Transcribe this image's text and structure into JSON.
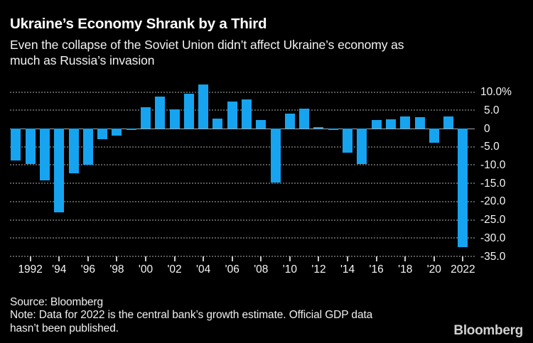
{
  "header": {
    "title": "Ukraine’s Economy Shrank by a Third",
    "subtitle_line1": "Even the collapse of the Soviet Union didn’t affect Ukraine’s economy as",
    "subtitle_line2": "much as Russia’s invasion"
  },
  "chart_data": {
    "type": "bar",
    "title": "Ukraine’s Economy Shrank by a Third",
    "xlabel": "",
    "ylabel": "",
    "unit": "%",
    "ylim": [
      -35,
      12.6
    ],
    "grid": "horizontal-dotted",
    "legend_position": "none",
    "years": [
      1991,
      1992,
      1993,
      1994,
      1995,
      1996,
      1997,
      1998,
      1999,
      2000,
      2001,
      2002,
      2003,
      2004,
      2005,
      2006,
      2007,
      2008,
      2009,
      2010,
      2011,
      2012,
      2013,
      2014,
      2015,
      2016,
      2017,
      2018,
      2019,
      2020,
      2021,
      2022
    ],
    "values": [
      -8.7,
      -9.7,
      -14.2,
      -22.9,
      -12.2,
      -10.0,
      -3.0,
      -1.9,
      -0.2,
      5.9,
      8.8,
      5.3,
      9.5,
      12.1,
      2.7,
      7.3,
      7.9,
      2.3,
      -14.8,
      4.1,
      5.5,
      0.2,
      0.0,
      -6.6,
      -9.8,
      2.4,
      2.5,
      3.4,
      3.2,
      -3.8,
      3.4,
      -32.5
    ],
    "y_ticks": [
      {
        "value": 10,
        "label": "10.0%"
      },
      {
        "value": 5,
        "label": "5.0"
      },
      {
        "value": 0,
        "label": "0"
      },
      {
        "value": -5,
        "label": "-5.0"
      },
      {
        "value": -10,
        "label": "-10.0"
      },
      {
        "value": -15,
        "label": "-15.0"
      },
      {
        "value": -20,
        "label": "-20.0"
      },
      {
        "value": -25,
        "label": "-25.0"
      },
      {
        "value": -30,
        "label": "-30.0"
      },
      {
        "value": -35,
        "label": "-35.0"
      }
    ],
    "x_ticks": [
      {
        "year": 1992,
        "label": "1992"
      },
      {
        "year": 1994,
        "label": "'94"
      },
      {
        "year": 1996,
        "label": "'96"
      },
      {
        "year": 1998,
        "label": "'98"
      },
      {
        "year": 2000,
        "label": "'00"
      },
      {
        "year": 2002,
        "label": "'02"
      },
      {
        "year": 2004,
        "label": "'04"
      },
      {
        "year": 2006,
        "label": "'06"
      },
      {
        "year": 2008,
        "label": "'08"
      },
      {
        "year": 2010,
        "label": "'10"
      },
      {
        "year": 2012,
        "label": "'12"
      },
      {
        "year": 2014,
        "label": "'14"
      },
      {
        "year": 2016,
        "label": "'16"
      },
      {
        "year": 2018,
        "label": "'18"
      },
      {
        "year": 2020,
        "label": "'20"
      },
      {
        "year": 2022,
        "label": "2022"
      }
    ],
    "colors": {
      "background": "#000000",
      "bar": "#16a4f0",
      "grid": "#585858",
      "zero_line": "#a8a8a8",
      "tick": "#c9c9c9",
      "text": "#f5f5f5"
    }
  },
  "footer": {
    "source": "Source: Bloomberg",
    "note_line1": "Note: Data for 2022 is the central bank’s growth estimate. Official GDP data",
    "note_line2": "hasn’t been published.",
    "logo": "Bloomberg"
  }
}
